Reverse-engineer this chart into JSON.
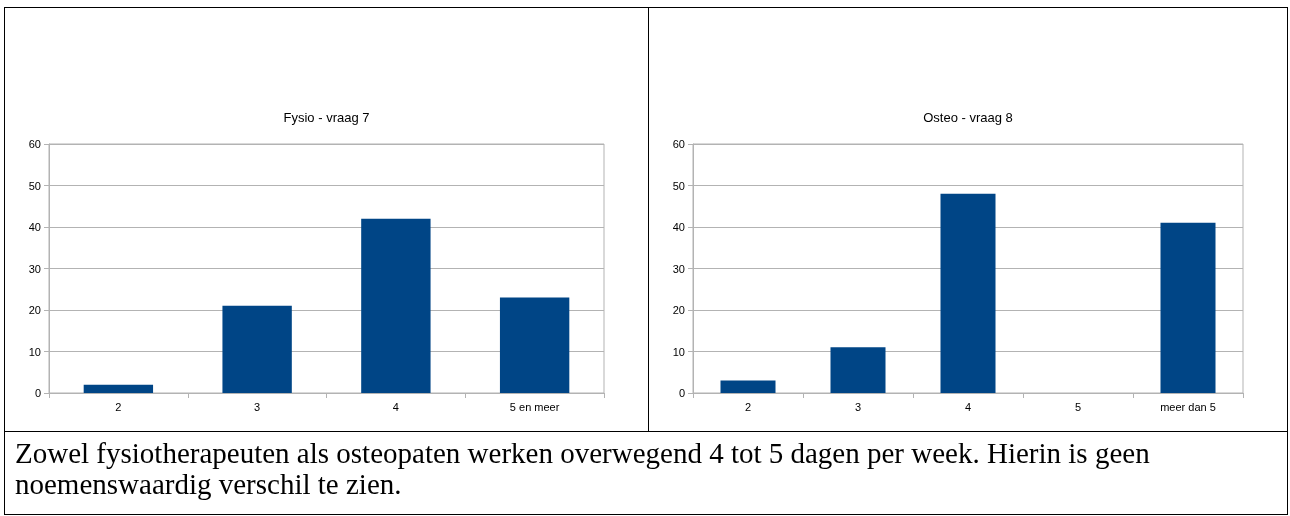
{
  "chart_data": [
    {
      "type": "bar",
      "title": "Fysio - vraag 7",
      "categories": [
        "2",
        "3",
        "4",
        "5 en meer"
      ],
      "values": [
        2,
        21,
        42,
        23
      ],
      "color": "#004586",
      "ylim": [
        0,
        60
      ],
      "yticks": [
        0,
        10,
        20,
        30,
        40,
        50,
        60
      ],
      "grid": "y"
    },
    {
      "type": "bar",
      "title": "Osteo - vraag 8",
      "categories": [
        "2",
        "3",
        "4",
        "5",
        "meer dan 5"
      ],
      "values": [
        3,
        11,
        48,
        0,
        41
      ],
      "color": "#004586",
      "ylim": [
        0,
        60
      ],
      "yticks": [
        0,
        10,
        20,
        30,
        40,
        50,
        60
      ],
      "grid": "y"
    },
    {
      "type": "other",
      "annotations": [
        "Zowel fysiotherapeuten als osteopaten werken overwegend 4 tot 5 dagen per week. Hierin is geen noemenswaardig verschil te zien."
      ]
    }
  ]
}
